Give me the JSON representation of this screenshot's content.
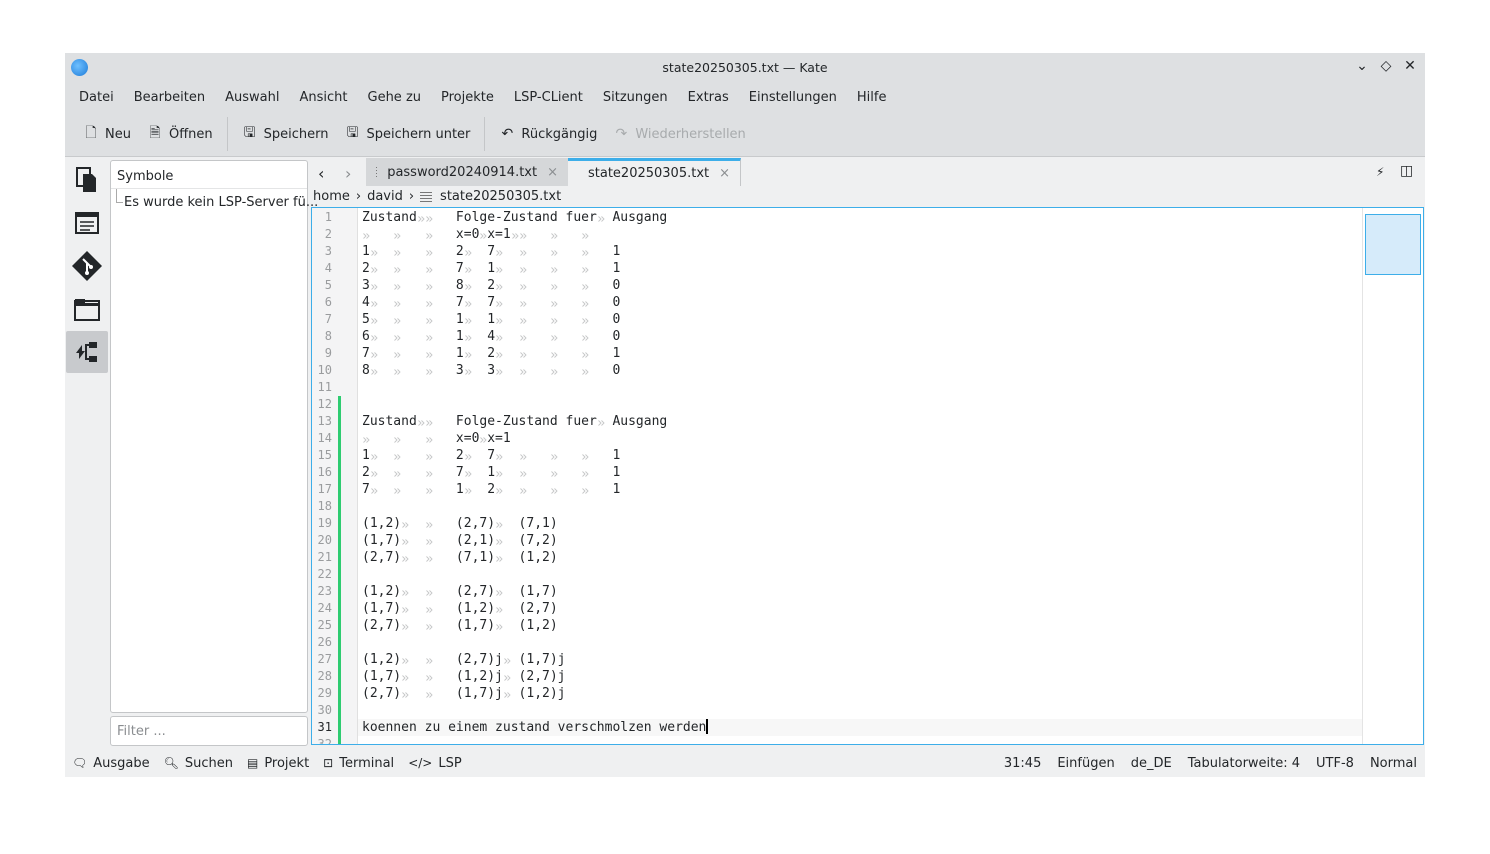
{
  "window": {
    "title": "state20250305.txt — Kate"
  },
  "menu": [
    "Datei",
    "Bearbeiten",
    "Auswahl",
    "Ansicht",
    "Gehe zu",
    "Projekte",
    "LSP-CLient",
    "Sitzungen",
    "Extras",
    "Einstellungen",
    "Hilfe"
  ],
  "toolbar": {
    "new": "Neu",
    "open": "Öffnen",
    "save": "Speichern",
    "save_as": "Speichern unter",
    "undo": "Rückgängig",
    "redo": "Wiederherstellen"
  },
  "symbols_panel": {
    "title": "Symbole",
    "message": "Es wurde kein LSP-Server fü...",
    "filter_placeholder": "Filter ..."
  },
  "tabs": [
    {
      "label": "password20240914.txt",
      "active": false
    },
    {
      "label": "state20250305.txt",
      "active": true
    }
  ],
  "breadcrumb": [
    "home",
    "david",
    "state20250305.txt"
  ],
  "editor": {
    "current_line": 31,
    "modified_lines": [
      12,
      31
    ],
    "lines": [
      "Zustand\t\tFolge-Zustand fuer\tAusgang",
      "\t\t\tx=0\tx=1\t\t\t\t",
      "1\t\t\t2\t7\t\t\t\t1",
      "2\t\t\t7\t1\t\t\t\t1",
      "3\t\t\t8\t2\t\t\t\t0",
      "4\t\t\t7\t7\t\t\t\t0",
      "5\t\t\t1\t1\t\t\t\t0",
      "6\t\t\t1\t4\t\t\t\t0",
      "7\t\t\t1\t2\t\t\t\t1",
      "8\t\t\t3\t3\t\t\t\t0",
      "",
      "",
      "Zustand\t\tFolge-Zustand fuer\tAusgang",
      "\t\t\tx=0\tx=1",
      "1\t\t\t2\t7\t\t\t\t1",
      "2\t\t\t7\t1\t\t\t\t1",
      "7\t\t\t1\t2\t\t\t\t1",
      "",
      "(1,2)\t\t(2,7)\t(7,1)",
      "(1,7)\t\t(2,1)\t(7,2)",
      "(2,7)\t\t(7,1)\t(1,2)",
      "",
      "(1,2)\t\t(2,7)\t(1,7)",
      "(1,7)\t\t(1,2)\t(2,7)",
      "(2,7)\t\t(1,7)\t(1,2)",
      "",
      "(1,2)\t\t(2,7)j\t(1,7)j",
      "(1,7)\t\t(1,2)j\t(2,7)j",
      "(2,7)\t\t(1,7)j\t(1,2)j",
      "",
      "koennen zu einem zustand verschmolzen werden",
      ""
    ]
  },
  "statusbar": {
    "output": "Ausgabe",
    "search": "Suchen",
    "project": "Projekt",
    "terminal": "Terminal",
    "lsp": "LSP",
    "cursor": "31:45",
    "mode": "Einfügen",
    "dictionary": "de_DE",
    "tab_width": "Tabulatorweite: 4",
    "encoding": "UTF-8",
    "highlight": "Normal"
  },
  "colors": {
    "accent": "#3daee9",
    "modified": "#2ecc71"
  }
}
